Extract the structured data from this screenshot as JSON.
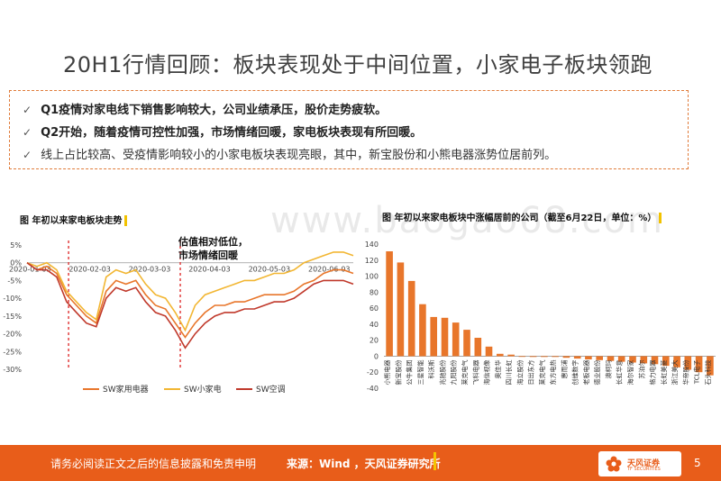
{
  "title": "20H1行情回顾：板块表现处于中间位置，小家电子板块领跑",
  "bullets": [
    {
      "text": "Q1疫情对家电线下销售影响较大，公司业绩承压，股价走势疲软。",
      "bold": true
    },
    {
      "text": "Q2开始，随着疫情可控性加强，市场情绪回暖，家电板块表现有所回暖。",
      "bold": true
    },
    {
      "text": "线上占比较高、受疫情影响较小的小家电板块表现亮眼，其中，新宝股份和小熊电器涨势位居前列。",
      "bold": false
    }
  ],
  "watermark": "www.baogao68.com",
  "footer": {
    "disclaimer": "请务必阅读正文之后的信息披露和免责申明",
    "source": "来源：Wind ，天风证券研究所",
    "logo_text": "天风证券",
    "logo_sub": "TF SECURITIES",
    "page": "5"
  },
  "colors": {
    "accent": "#e85d1a",
    "sw_home": "#e8762b",
    "sw_small": "#f2b632",
    "sw_ac": "#c0392b"
  },
  "chart_data": [
    {
      "type": "line",
      "title": "图 年初以来家电板块走势",
      "annotation": "估值相对低位，\n市场情绪回暖",
      "x_ticks": [
        "2020-01-03",
        "2020-02-03",
        "2020-03-03",
        "2020-04-03",
        "2020-05-03",
        "2020-06-03"
      ],
      "y_ticks": [
        "5%",
        "0%",
        "-5%",
        "-10%",
        "-15%",
        "-20%",
        "-25%",
        "-30%"
      ],
      "ylim": [
        -30,
        5
      ],
      "series": [
        {
          "name": "SW家用电器",
          "values": [
            0,
            -2,
            -1,
            -3,
            -9,
            -12,
            -15,
            -17,
            -8,
            -5,
            -6,
            -5,
            -9,
            -12,
            -13,
            -17,
            -21,
            -17,
            -14,
            -12,
            -12,
            -11,
            -11,
            -10,
            -9,
            -9,
            -9,
            -8,
            -6,
            -5,
            -3,
            -2,
            -2,
            -3
          ]
        },
        {
          "name": "SW小家电",
          "values": [
            0,
            -1,
            0,
            -2,
            -8,
            -11,
            -14,
            -16,
            -4,
            -2,
            -3,
            -2,
            -6,
            -9,
            -10,
            -14,
            -19,
            -12,
            -9,
            -8,
            -7,
            -6,
            -5,
            -5,
            -4,
            -3,
            -3,
            -2,
            0,
            1,
            2,
            3,
            3,
            2
          ]
        },
        {
          "name": "SW空调",
          "values": [
            0,
            -2,
            -2,
            -4,
            -11,
            -14,
            -17,
            -18,
            -10,
            -7,
            -8,
            -7,
            -11,
            -14,
            -15,
            -19,
            -24,
            -20,
            -17,
            -15,
            -14,
            -14,
            -13,
            -13,
            -12,
            -11,
            -11,
            -10,
            -8,
            -6,
            -5,
            -5,
            -5,
            -6
          ]
        }
      ]
    },
    {
      "type": "bar",
      "title": "图 年初以来家电板块中涨幅居前的公司（截至6月22日，单位：%）",
      "categories": [
        "小熊电器",
        "新宝股份",
        "公牛集团",
        "三星智能",
        "科沃斯",
        "兆驰股份",
        "九阳股份",
        "莱克电气",
        "飞科电器",
        "海信视像",
        "奥佳华",
        "四川长虹",
        "海立股份",
        "日出东方",
        "莱克电气2",
        "东方电热",
        "惠而浦",
        "创维数字",
        "老板电器",
        "德业股份",
        "澳柯玛",
        "长虹华意",
        "海尔智家",
        "苏泊尔",
        "格力电器",
        "长虹美菱",
        "浙江美大",
        "华帝股份",
        "TCL电子",
        "石头科技"
      ],
      "tick_labels": [
        "小熊电器",
        "新宝股份",
        "公牛集团",
        "三星智能",
        "科沃斯",
        "兆驰股份",
        "九阳股份",
        "莱克电气",
        "飞科电器",
        "海信视像",
        "奥佳华",
        "四川长虹",
        "海立股份",
        "日出东方",
        "莱克电气",
        "东方电热",
        "惠而浦",
        "创维数字",
        "老板电器",
        "德业股份",
        "澳柯玛",
        "长虹华意",
        "海尔智家",
        "苏泊尔",
        "格力电器",
        "长虹美菱",
        "浙江美大",
        "华帝股份",
        "TCL电子",
        "石头科技"
      ],
      "values": [
        131,
        117,
        94,
        65,
        49,
        48,
        42,
        33,
        23,
        12,
        3,
        2,
        0,
        -1,
        -1,
        -1,
        -2,
        -3,
        -4,
        -5,
        -6,
        -7,
        -8,
        -9,
        -10,
        -12,
        -14,
        -17,
        -20,
        -24
      ],
      "y_ticks": [
        "140",
        "120",
        "100",
        "80",
        "60",
        "40",
        "20",
        "0",
        "-20",
        "-40"
      ],
      "ylim": [
        -40,
        140
      ]
    }
  ]
}
